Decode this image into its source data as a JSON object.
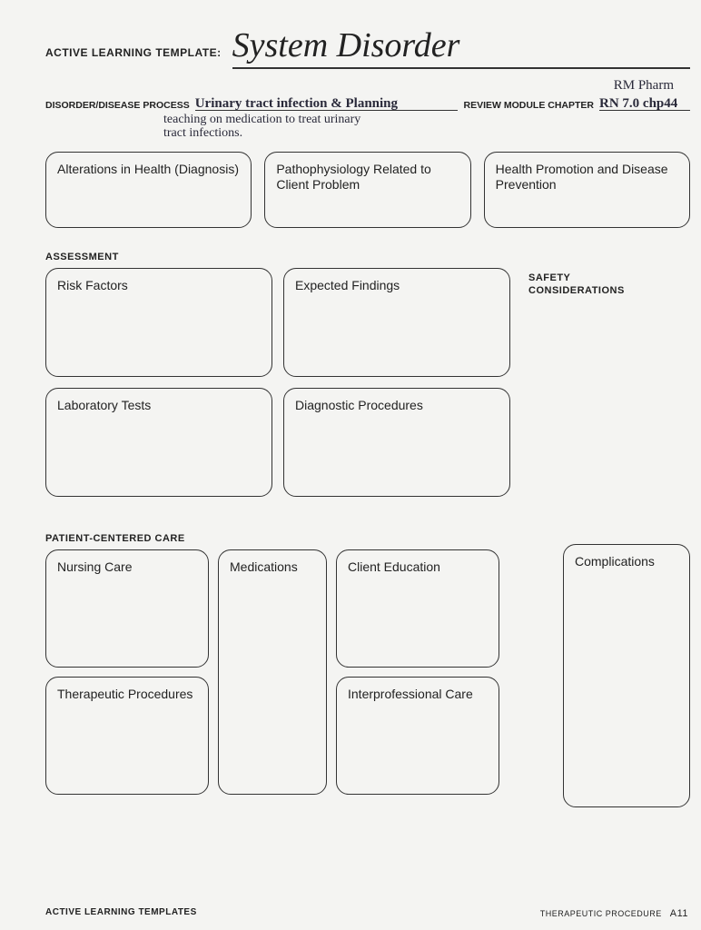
{
  "header": {
    "prefix": "ACTIVE LEARNING TEMPLATE:",
    "title": "System Disorder"
  },
  "handwritten_top": "RM Pharm",
  "meta": {
    "disorder_label": "DISORDER/DISEASE PROCESS",
    "disorder_value": "Urinary tract infection & Planning",
    "disorder_sub": "teaching on medication to treat urinary\ntract infections.",
    "review_label": "REVIEW MODULE CHAPTER",
    "review_value": "RN 7.0 chp44"
  },
  "top_boxes": {
    "b1": "Alterations in Health (Diagnosis)",
    "b2": "Pathophysiology Related to Client Problem",
    "b3": "Health Promotion and Disease Prevention"
  },
  "assessment": {
    "label": "ASSESSMENT",
    "risk": "Risk Factors",
    "expected": "Expected Findings",
    "lab": "Laboratory Tests",
    "diag": "Diagnostic Procedures",
    "side_label": "SAFETY CONSIDERATIONS"
  },
  "pcc": {
    "label": "PATIENT-CENTERED CARE",
    "nursing": "Nursing Care",
    "meds": "Medications",
    "client_ed": "Client Education",
    "therapeutic": "Therapeutic Procedures",
    "inter": "Interprofessional Care",
    "complications": "Complications"
  },
  "footer": {
    "left": "ACTIVE LEARNING TEMPLATES",
    "right": "THERAPEUTIC PROCEDURE",
    "page": "A11"
  },
  "colors": {
    "bg": "#f4f4f2",
    "border": "#333333",
    "text": "#222222"
  }
}
